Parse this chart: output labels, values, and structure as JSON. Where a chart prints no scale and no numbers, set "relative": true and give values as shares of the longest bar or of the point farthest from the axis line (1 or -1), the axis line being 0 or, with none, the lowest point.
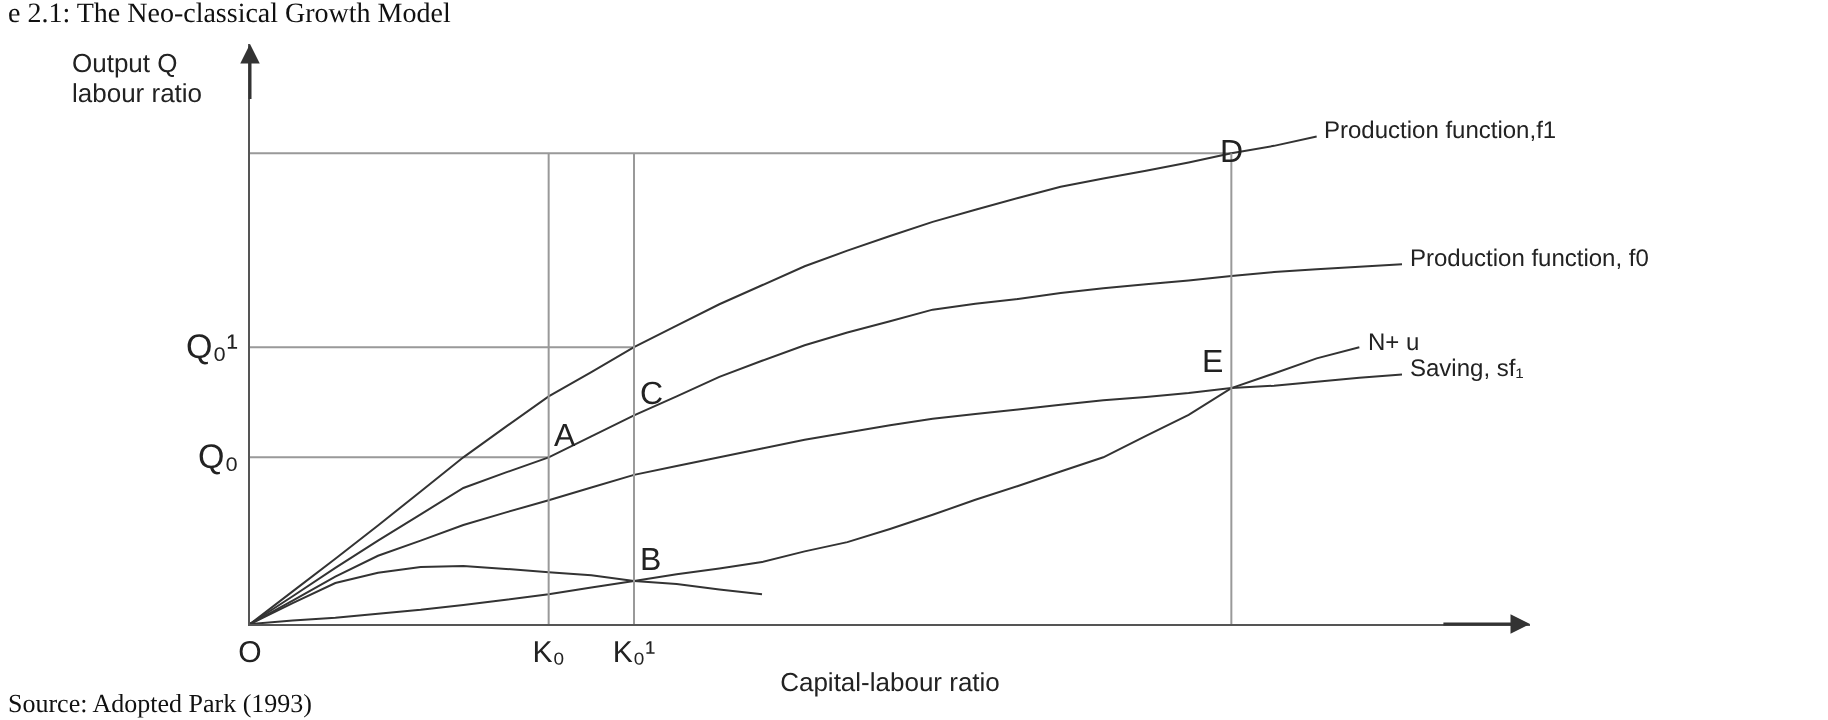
{
  "chart_data": {
    "type": "line",
    "title": "e 2.1: The Neo-classical Growth Model",
    "xlabel": "Capital-labour ratio",
    "ylabel": "Output Q labour ratio",
    "relative": true,
    "categories": [
      "O",
      null,
      null,
      null,
      null,
      null,
      null,
      "K₀",
      null,
      "K₀¹",
      null,
      null,
      null,
      null,
      null,
      null,
      null,
      null,
      null,
      null,
      null,
      null,
      null,
      null,
      null,
      null,
      null,
      null,
      null,
      null,
      null
    ],
    "series": [
      {
        "color": "#999999",
        "values": [
          0.342,
          0.342,
          0.342,
          0.342,
          0.342,
          0.342,
          0.342,
          0.342,
          null,
          null,
          null,
          null,
          null,
          null,
          null,
          null,
          null,
          null,
          null,
          null,
          null,
          null,
          null,
          null,
          null,
          null,
          null,
          null,
          null,
          null,
          null
        ]
      },
      {
        "color": "#999999",
        "values": [
          0.568,
          0.568,
          0.568,
          0.568,
          0.568,
          0.568,
          0.568,
          0.568,
          0.568,
          0.568,
          null,
          null,
          null,
          null,
          null,
          null,
          null,
          null,
          null,
          null,
          null,
          null,
          null,
          null,
          null,
          null,
          null,
          null,
          null,
          null,
          null
        ]
      },
      {
        "color": "#999999",
        "values": [
          0.966,
          0.966,
          0.966,
          0.966,
          0.966,
          0.966,
          0.966,
          0.966,
          0.966,
          0.966,
          0.966,
          0.966,
          0.966,
          0.966,
          0.966,
          0.966,
          0.966,
          0.966,
          0.966,
          0.966,
          0.966,
          0.966,
          0.966,
          0.966,
          null,
          null,
          null,
          null,
          null,
          null,
          null
        ]
      },
      {
        "name": "Production function,f1",
        "color": "#333333",
        "values": [
          0,
          0.067,
          0.134,
          0.202,
          0.272,
          0.342,
          0.405,
          0.467,
          0.517,
          0.568,
          0.612,
          0.656,
          0.695,
          0.734,
          0.766,
          0.796,
          0.825,
          0.85,
          0.874,
          0.897,
          0.914,
          0.93,
          0.947,
          0.966,
          0.981,
          1,
          null,
          null,
          null,
          null,
          null
        ]
      },
      {
        "name": "Production function, f0",
        "color": "#333333",
        "values": [
          0,
          0.057,
          0.115,
          0.171,
          0.225,
          0.279,
          0.311,
          0.342,
          0.385,
          0.428,
          0.467,
          0.507,
          0.54,
          0.572,
          0.598,
          0.621,
          0.645,
          0.657,
          0.667,
          0.679,
          0.689,
          0.697,
          0.705,
          0.714,
          0.722,
          0.728,
          0.733,
          0.738,
          null,
          null,
          null
        ]
      },
      {
        "name": "Saving, sf₁",
        "color": "#333333",
        "values": [
          0,
          0.048,
          0.097,
          0.14,
          0.171,
          0.203,
          0.229,
          0.254,
          0.28,
          0.306,
          0.324,
          0.342,
          0.36,
          0.378,
          0.393,
          0.408,
          0.421,
          0.431,
          0.44,
          0.45,
          0.459,
          0.466,
          0.474,
          0.484,
          0.489,
          0.497,
          0.505,
          0.512,
          null,
          null,
          null
        ]
      },
      {
        "name": "N+ u",
        "color": "#333333",
        "values": [
          0,
          0.007,
          0.013,
          0.021,
          0.029,
          0.039,
          0.05,
          0.061,
          0.075,
          0.088,
          0.102,
          0.114,
          0.127,
          0.149,
          0.168,
          0.195,
          0.224,
          0.255,
          0.283,
          0.313,
          0.342,
          0.386,
          0.429,
          0.484,
          0.514,
          0.545,
          0.568,
          null,
          null,
          null,
          null
        ]
      },
      {
        "color": "#333333",
        "values": [
          0,
          0.043,
          0.084,
          0.105,
          0.117,
          0.119,
          0.113,
          0.106,
          0.1,
          0.088,
          0.082,
          0.071,
          0.061,
          null,
          null,
          null,
          null,
          null,
          null,
          null,
          null,
          null,
          null,
          null,
          null,
          null,
          null,
          null,
          null,
          null,
          null
        ]
      }
    ],
    "ref_lines": [
      {
        "axis": "x",
        "value": "K₀",
        "color": "#999999"
      },
      {
        "axis": "x",
        "value": "K₀¹",
        "color": "#999999"
      }
    ],
    "annotations": [
      {
        "text": "A",
        "x": "K₀",
        "y": 0.342
      },
      {
        "text": "B",
        "x": "K₀¹",
        "y": 0.088
      },
      {
        "text": "C",
        "x": "K₀¹",
        "y": 0.428
      },
      {
        "text": "D",
        "y": 0.966
      },
      {
        "text": "E",
        "y": 0.484
      },
      {
        "text": "Q₀",
        "x": "O",
        "y": 0.342
      },
      {
        "text": "Q₀¹",
        "x": "O",
        "y": 0.568
      },
      "Source: Adopted Park (1993)"
    ]
  }
}
